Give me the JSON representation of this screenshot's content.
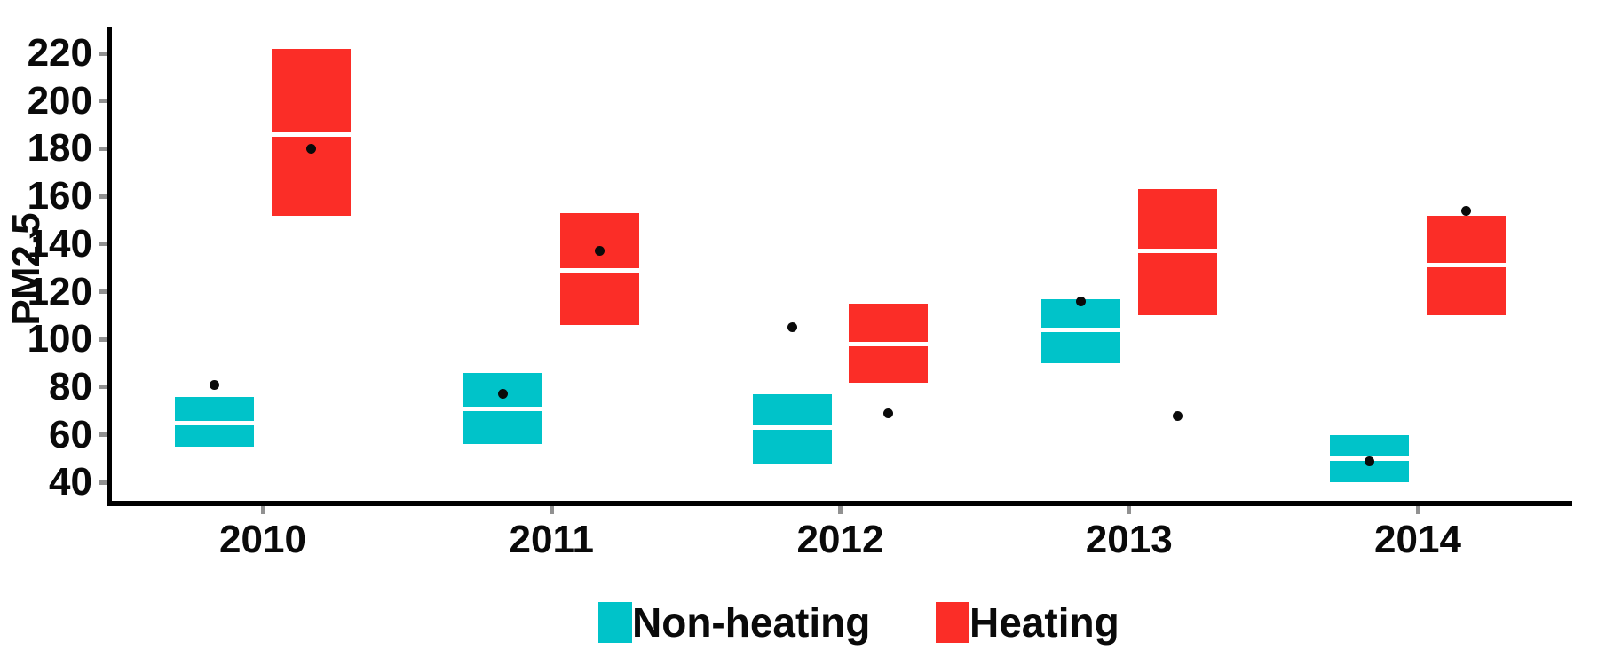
{
  "chart_data": {
    "type": "boxplot",
    "title": "",
    "ylabel": "PM2.5",
    "xlabel": "",
    "categories": [
      "2010",
      "2011",
      "2012",
      "2013",
      "2014"
    ],
    "y_ticks": [
      40,
      60,
      80,
      100,
      120,
      140,
      160,
      180,
      200,
      220
    ],
    "ylim": [
      32,
      230
    ],
    "grid": "off",
    "legend_position": "bottom",
    "point_style": "black filled circle (mean/outlier marker centered on each box)",
    "series": [
      {
        "name": "Non-heating",
        "color": "#00C3C9",
        "boxes": [
          {
            "category": "2010",
            "lower": 55,
            "median": 65,
            "upper": 76,
            "point": 81
          },
          {
            "category": "2011",
            "lower": 56,
            "median": 71,
            "upper": 86,
            "point": 77
          },
          {
            "category": "2012",
            "lower": 48,
            "median": 63,
            "upper": 77,
            "point": 105
          },
          {
            "category": "2013",
            "lower": 90,
            "median": 104,
            "upper": 117,
            "point": 116
          },
          {
            "category": "2014",
            "lower": 40,
            "median": 50,
            "upper": 60,
            "point": 49
          }
        ]
      },
      {
        "name": "Heating",
        "color": "#FB2D27",
        "boxes": [
          {
            "category": "2010",
            "lower": 152,
            "median": 186,
            "upper": 222,
            "point": 180
          },
          {
            "category": "2011",
            "lower": 106,
            "median": 129,
            "upper": 153,
            "point": 137
          },
          {
            "category": "2012",
            "lower": 82,
            "median": 98,
            "upper": 115,
            "point": 69
          },
          {
            "category": "2013",
            "lower": 110,
            "median": 137,
            "upper": 163,
            "point": 68
          },
          {
            "category": "2014",
            "lower": 110,
            "median": 131,
            "upper": 152,
            "point": 154
          }
        ]
      }
    ],
    "colors": {
      "axis": "#000000",
      "tick_mark": "#919191",
      "text": "#0a0a0a",
      "point": "#0a0a0a",
      "median_line": "#ffffff"
    }
  }
}
